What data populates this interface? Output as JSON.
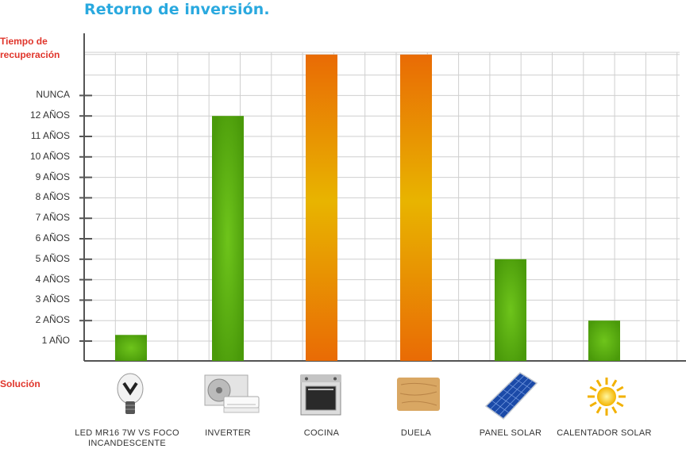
{
  "title": "Retorno de inversión.",
  "y_axis_label": "Tiempo de recuperación",
  "x_axis_label": "Solución",
  "colors": {
    "green": "#6ec41b",
    "green_dark": "#4a9a0a",
    "orange": "#e96b05",
    "gold": "#e8b400",
    "title": "#2aa9df",
    "label_red": "#e0352b"
  },
  "chart_data": {
    "type": "bar",
    "title": "Retorno de inversión.",
    "xlabel": "Solución",
    "ylabel": "Tiempo de recuperación",
    "y_ticks": [
      "1 AÑO",
      "2 AÑOS",
      "3 AÑOS",
      "4 AÑOS",
      "5 AÑOS",
      "6 AÑOS",
      "7 AÑOS",
      "8 AÑOS",
      "9 AÑOS",
      "10 AÑOS",
      "11 AÑOS",
      "12 AÑOS",
      "NUNCA"
    ],
    "categories": [
      "LED MR16  7W VS FOCO INCANDESCENTE",
      "INVERTER",
      "COCINA",
      "DUELA",
      "PANEL SOLAR",
      "CALENTADOR SOLAR"
    ],
    "values": [
      1.3,
      12,
      15,
      15,
      5,
      2
    ],
    "bar_colors": [
      "green",
      "green",
      "orange",
      "orange",
      "green",
      "green"
    ],
    "icons": [
      "light-bulb-icon",
      "air-conditioner-icon",
      "oven-icon",
      "wood-floor-icon",
      "solar-panel-icon",
      "sun-icon"
    ],
    "ylim": [
      0,
      15
    ],
    "grid": true
  }
}
